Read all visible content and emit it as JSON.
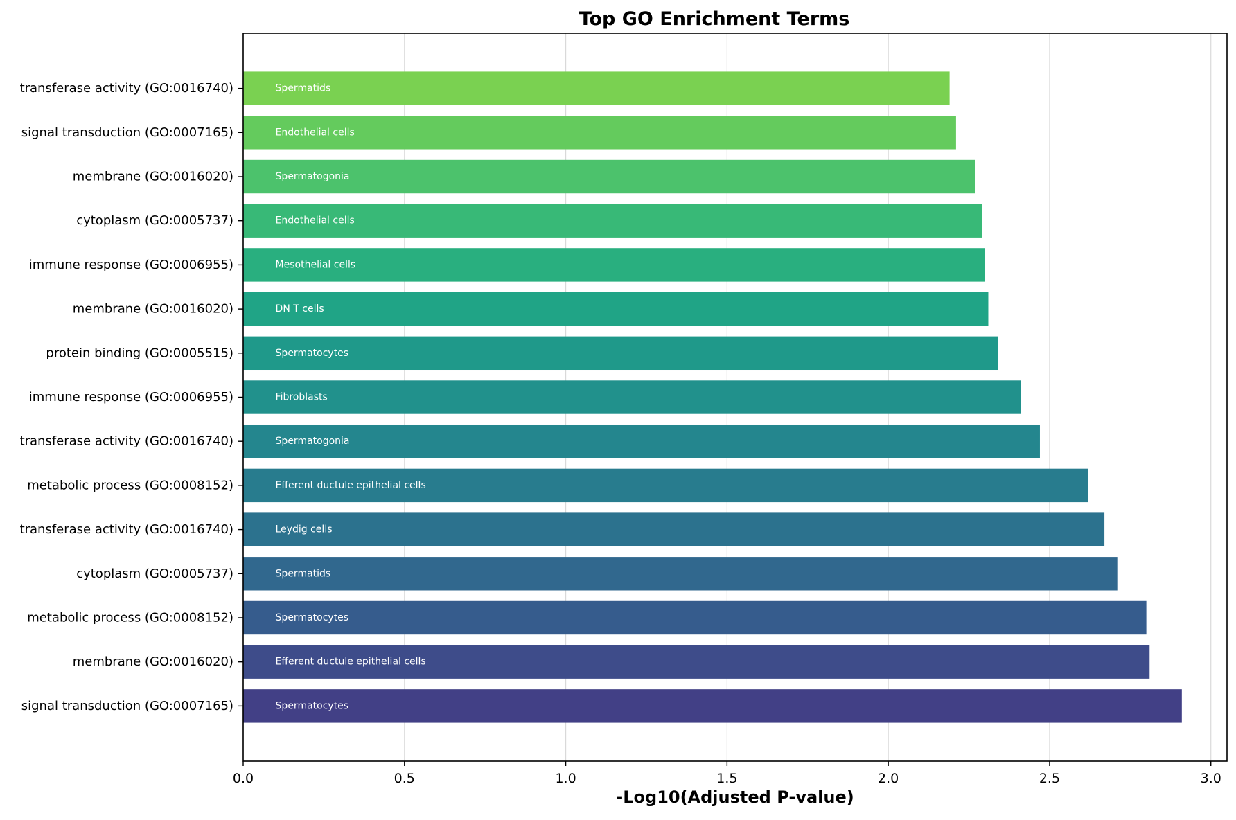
{
  "chart_data": {
    "type": "bar",
    "orientation": "horizontal",
    "title": "Top GO Enrichment Terms",
    "xlabel": "-Log10(Adjusted P-value)",
    "ylabel": "",
    "xlim": [
      0,
      3.05
    ],
    "x_ticks": [
      "0.0",
      "0.5",
      "1.0",
      "1.5",
      "2.0",
      "2.5",
      "3.0"
    ],
    "grid": "vertical",
    "colormap": "viridis",
    "bars": [
      {
        "term": "transferase activity (GO:0016740)",
        "cell_type": "Spermatids",
        "value": 2.19,
        "color": "#7ad151"
      },
      {
        "term": "signal transduction (GO:0007165)",
        "cell_type": "Endothelial cells",
        "value": 2.21,
        "color": "#64cb5d"
      },
      {
        "term": "membrane (GO:0016020)",
        "cell_type": "Spermatogonia",
        "value": 2.27,
        "color": "#4cc26c"
      },
      {
        "term": "cytoplasm (GO:0005737)",
        "cell_type": "Endothelial cells",
        "value": 2.29,
        "color": "#38b977"
      },
      {
        "term": "immune response (GO:0006955)",
        "cell_type": "Mesothelial cells",
        "value": 2.3,
        "color": "#29af7f"
      },
      {
        "term": "membrane (GO:0016020)",
        "cell_type": "DN T cells",
        "value": 2.31,
        "color": "#20a486"
      },
      {
        "term": "protein binding (GO:0005515)",
        "cell_type": "Spermatocytes",
        "value": 2.34,
        "color": "#1f998a"
      },
      {
        "term": "immune response (GO:0006955)",
        "cell_type": "Fibroblasts",
        "value": 2.41,
        "color": "#21918c"
      },
      {
        "term": "transferase activity (GO:0016740)",
        "cell_type": "Spermatogonia",
        "value": 2.47,
        "color": "#24868e"
      },
      {
        "term": "metabolic process (GO:0008152)",
        "cell_type": "Efferent ductule epithelial cells",
        "value": 2.62,
        "color": "#287c8e"
      },
      {
        "term": "transferase activity (GO:0016740)",
        "cell_type": "Leydig cells",
        "value": 2.67,
        "color": "#2c728e"
      },
      {
        "term": "cytoplasm (GO:0005737)",
        "cell_type": "Spermatids",
        "value": 2.71,
        "color": "#31688e"
      },
      {
        "term": "metabolic process (GO:0008152)",
        "cell_type": "Spermatocytes",
        "value": 2.8,
        "color": "#365c8d"
      },
      {
        "term": "membrane (GO:0016020)",
        "cell_type": "Efferent ductule epithelial cells",
        "value": 2.81,
        "color": "#3e4c8a"
      },
      {
        "term": "signal transduction (GO:0007165)",
        "cell_type": "Spermatocytes",
        "value": 2.91,
        "color": "#424086"
      }
    ]
  }
}
